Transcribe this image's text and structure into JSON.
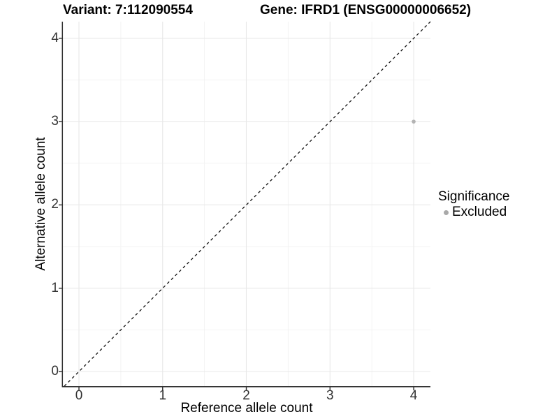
{
  "header": {
    "variant_title": "Variant: 7:112090554",
    "gene_title": "Gene: IFRD1 (ENSG00000006652)"
  },
  "chart_data": {
    "type": "scatter",
    "xlabel": "Reference allele count",
    "ylabel": "Alternative allele count",
    "x_ticks": [
      0,
      1,
      2,
      3,
      4
    ],
    "y_ticks": [
      0,
      1,
      2,
      3,
      4
    ],
    "x_tick_labels": [
      "0",
      "1",
      "2",
      "3",
      "4"
    ],
    "y_tick_labels": [
      "0",
      "1",
      "2",
      "3",
      "4"
    ],
    "minor_gridlines_x": [
      0.5,
      1.5,
      2.5,
      3.5
    ],
    "minor_gridlines_y": [
      0.5,
      1.5,
      2.5,
      3.5
    ],
    "xlim": [
      -0.192,
      4.2
    ],
    "ylim": [
      -0.176,
      4.2
    ],
    "grid": "major+minor",
    "points": [
      {
        "x": 4,
        "y": 3,
        "significance": "Excluded"
      }
    ],
    "reference_line": {
      "style": "dashed",
      "slope": 1,
      "intercept": 0
    },
    "legend": {
      "title": "Significance",
      "position": "right",
      "items": [
        {
          "label": "Excluded",
          "color": "#a9a9a9",
          "marker": "circle"
        }
      ]
    },
    "colors": {
      "point": "#b3b3b3",
      "grid_major": "#e8e8e8",
      "grid_minor": "#f2f2f2",
      "axis_line": "#2e2e2e",
      "tick_mark": "#2e2e2e",
      "reference_line": "#111111"
    }
  }
}
